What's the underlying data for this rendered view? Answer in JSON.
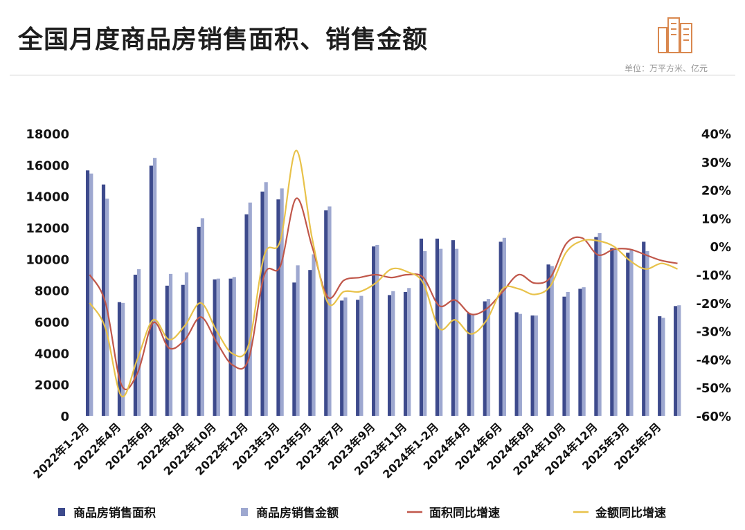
{
  "header": {
    "title": "全国月度商品房销售面积、销售金额",
    "unit": "单位：万平方米、亿元"
  },
  "colors": {
    "area_bar": "#3d4a8c",
    "amount_bar": "#9ea8d0",
    "area_growth_line": "#c0574a",
    "amount_growth_line": "#e8c24a",
    "logo": "#d9884f"
  },
  "icons": {
    "logo": "buildings-icon"
  },
  "chart_data": {
    "type": "bar",
    "title": "全国月度商品房销售面积、销售金额",
    "y_left_range": [
      0,
      18000
    ],
    "y_left_ticks": [
      "0",
      "2000",
      "4000",
      "6000",
      "8000",
      "10000",
      "12000",
      "14000",
      "16000",
      "18000"
    ],
    "y_right_range": [
      -60,
      40
    ],
    "y_right_ticks": [
      "-60%",
      "-50%",
      "-40%",
      "-30%",
      "-20%",
      "-10%",
      "0%",
      "10%",
      "20%",
      "30%",
      "40%"
    ],
    "grid": false,
    "legend_position": "bottom",
    "categories": [
      "2022年1-2月",
      "2022年3月",
      "2022年4月",
      "2022年5月",
      "2022年6月",
      "2022年7月",
      "2022年8月",
      "2022年9月",
      "2022年10月",
      "2022年11月",
      "2022年12月",
      "2023年1-2月",
      "2023年3月",
      "2023年4月",
      "2023年5月",
      "2023年6月",
      "2023年7月",
      "2023年8月",
      "2023年9月",
      "2023年10月",
      "2023年11月",
      "2023年12月",
      "2024年1-2月",
      "2024年3月",
      "2024年4月",
      "2024年5月",
      "2024年6月",
      "2024年7月",
      "2024年8月",
      "2024年9月",
      "2024年10月",
      "2024年11月",
      "2024年12月",
      "2025年1-2月",
      "2025年3月",
      "2025年4月",
      "2025年5月",
      "2025年6月"
    ],
    "x_tick_labels": [
      "2022年1-2月",
      "2022年4月",
      "2022年6月",
      "2022年8月",
      "2022年10月",
      "2022年12月",
      "2023年3月",
      "2023年5月",
      "2023年7月",
      "2023年9月",
      "2023年11月",
      "2024年1-2月",
      "2024年4月",
      "2024年6月",
      "2024年8月",
      "2024年10月",
      "2024年12月",
      "2025年3月",
      "2025年5月"
    ],
    "series": [
      {
        "name": "商品房销售面积",
        "type": "bar",
        "axis": "left",
        "values": [
          15650,
          14750,
          7250,
          9000,
          15950,
          8300,
          8350,
          12050,
          8700,
          8750,
          12850,
          14300,
          13800,
          8500,
          9300,
          13100,
          7350,
          7400,
          10800,
          7700,
          7900,
          11300,
          11300,
          11200,
          6550,
          7300,
          11100,
          6600,
          6400,
          9650,
          7600,
          8100,
          11400,
          10700,
          10400,
          11100,
          6350,
          7000
        ]
      },
      {
        "name": "商品房销售金额",
        "type": "bar",
        "axis": "left",
        "values": [
          15450,
          13850,
          7200,
          9350,
          16450,
          9050,
          9150,
          12600,
          8750,
          8850,
          13600,
          14900,
          14500,
          9600,
          10300,
          13350,
          7550,
          7650,
          10900,
          7950,
          8150,
          10500,
          10650,
          10650,
          6500,
          7450,
          11350,
          6500,
          6400,
          9550,
          7900,
          8200,
          11650,
          10650,
          10600,
          10500,
          6250,
          7050
        ]
      },
      {
        "name": "面积同比增速",
        "type": "line",
        "axis": "right",
        "values": [
          -10,
          -20,
          -49,
          -45,
          -27,
          -36,
          -33,
          -25,
          -34,
          -42,
          -40,
          -10,
          -7,
          17,
          0,
          -18,
          -12,
          -11,
          -10,
          -11,
          -10,
          -11,
          -21,
          -19,
          -24,
          -22,
          -16,
          -10,
          -13,
          -11,
          1,
          3,
          -3,
          -1,
          -1,
          -3,
          -5,
          -6
        ]
      },
      {
        "name": "金额同比增速",
        "type": "line",
        "axis": "right",
        "values": [
          -20,
          -29,
          -53,
          -40,
          -26,
          -33,
          -28,
          -20,
          -30,
          -38,
          -35,
          -3,
          2,
          34,
          3,
          -20,
          -16,
          -16,
          -13,
          -8,
          -9,
          -13,
          -29,
          -26,
          -31,
          -26,
          -15,
          -15,
          -17,
          -14,
          -2,
          2,
          2,
          0,
          -5,
          -8,
          -6,
          -8
        ]
      }
    ]
  }
}
